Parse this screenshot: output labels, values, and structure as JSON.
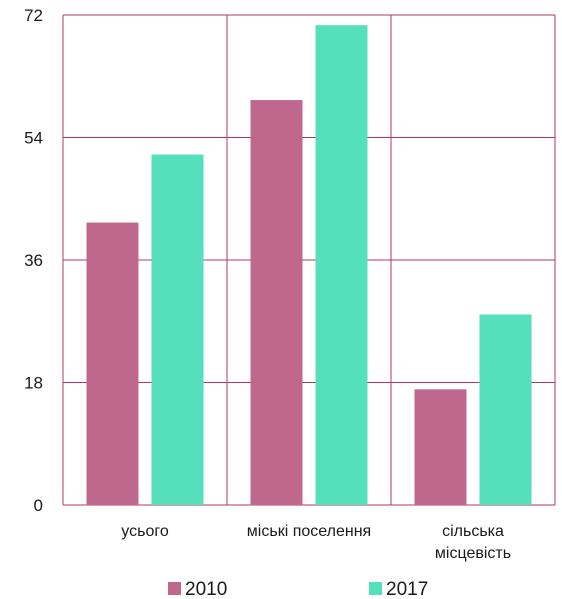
{
  "chart_data": {
    "type": "bar",
    "categories": [
      [
        "усього"
      ],
      [
        "міські поселення"
      ],
      [
        "сільська",
        "місцевість"
      ]
    ],
    "series": [
      {
        "name": "2010",
        "values": [
          41.5,
          59.5,
          17
        ],
        "color": "#c0678d"
      },
      {
        "name": "2017",
        "values": [
          51.5,
          70.5,
          28
        ],
        "color": "#55dfbb"
      }
    ],
    "ylim": [
      0,
      72
    ],
    "yticks": [
      "0",
      "18",
      "36",
      "54",
      "72"
    ],
    "grid": true,
    "grid_color": "#b0385f",
    "legend_position": "bottom"
  }
}
